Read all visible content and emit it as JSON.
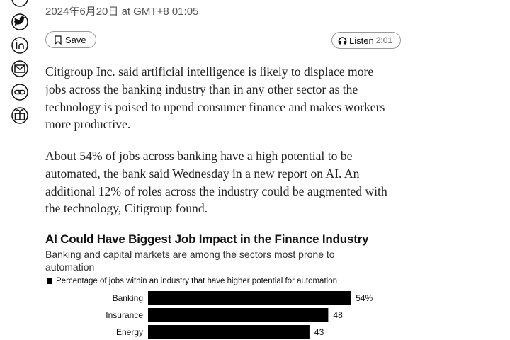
{
  "article": {
    "date": "2024年6月20日 at GMT+8 01:05",
    "save_label": "Save",
    "listen_label": "Listen",
    "listen_duration": "2:01",
    "paragraphs": [
      [
        "Citigroup Inc.",
        " said artificial intelligence is likely to displace more jobs across the banking industry than in any other sector as the technology is poised to upend consumer finance and makes workers more productive."
      ],
      [
        "About 54% of jobs across banking have a high potential to be automated, the bank said Wednesday in a new ",
        "report",
        " on AI. An additional 12% of roles across the industry could be augmented with the technology, Citigroup found."
      ]
    ]
  },
  "chart_data": {
    "type": "bar",
    "orientation": "horizontal",
    "title": "AI Could Have Biggest Job Impact in the Finance Industry",
    "subtitle": "Banking and capital markets are among the sectors most prone to automation",
    "categories": [
      "Banking",
      "Insurance",
      "Energy"
    ],
    "series": [
      {
        "name": "Percentage of jobs within an industry that have higher potential for automation",
        "color": "#000000",
        "values": [
          54,
          48,
          43
        ],
        "value_labels": [
          "54%",
          "48",
          "43"
        ]
      }
    ]
  }
}
